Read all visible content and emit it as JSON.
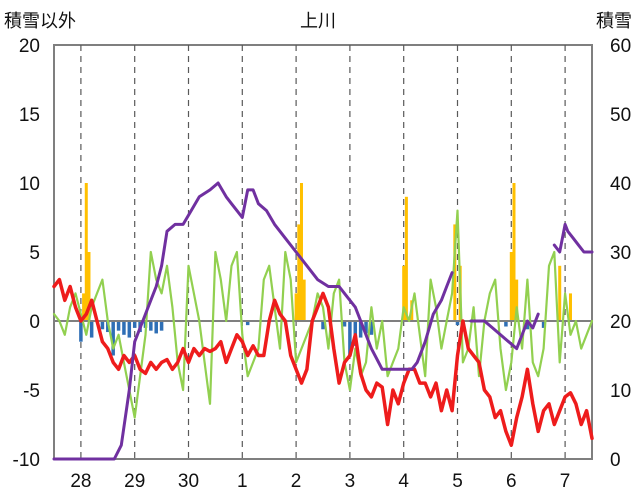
{
  "chart_data": {
    "type": "line",
    "title": "上川",
    "ylabel_left": "積雪以外",
    "ylabel_right": "積雪",
    "y_left_range": [
      -10,
      20
    ],
    "y_right_range": [
      0,
      60
    ],
    "y_left_ticks": [
      "20",
      "15",
      "10",
      "5",
      "0",
      "-5",
      "-10"
    ],
    "y_right_ticks": [
      "60",
      "50",
      "40",
      "30",
      "20",
      "10",
      "0"
    ],
    "x_ticks": [
      "28",
      "29",
      "30",
      "1",
      "2",
      "3",
      "4",
      "5",
      "6",
      "7"
    ],
    "x_range": [
      27.5,
      37.5
    ],
    "grid": "vertical dashed at each day",
    "colors": {
      "temperature": "#ee1c1c",
      "wind": "#92d050",
      "snow_depth": "#7030a0",
      "precip": "#ffc000",
      "snow_change": "#2f6fb5",
      "axis": "#7f7f7f"
    },
    "series": [
      {
        "key": "temperature",
        "axis": "left",
        "x": [
          27.5,
          27.6,
          27.7,
          27.8,
          27.9,
          28.0,
          28.1,
          28.2,
          28.3,
          28.4,
          28.5,
          28.6,
          28.7,
          28.8,
          28.9,
          29.0,
          29.1,
          29.2,
          29.3,
          29.4,
          29.5,
          29.6,
          29.7,
          29.8,
          29.9,
          30.0,
          30.1,
          30.2,
          30.3,
          30.4,
          30.5,
          30.6,
          30.7,
          30.8,
          30.9,
          31.0,
          31.1,
          31.2,
          31.3,
          31.4,
          31.5,
          31.6,
          31.7,
          31.8,
          31.9,
          32.0,
          32.1,
          32.2,
          32.3,
          32.4,
          32.5,
          32.6,
          32.7,
          32.8,
          32.9,
          33.0,
          33.1,
          33.2,
          33.3,
          33.4,
          33.5,
          33.6,
          33.7,
          33.8,
          33.9,
          34.0,
          34.1,
          34.2,
          34.3,
          34.4,
          34.5,
          34.6,
          34.7,
          34.8,
          34.9,
          35.0,
          35.1,
          35.2,
          35.3,
          35.4,
          35.5,
          35.6,
          35.7,
          35.8,
          35.9,
          36.0,
          36.1,
          36.2,
          36.3,
          36.4,
          36.5,
          36.6,
          36.7,
          36.8,
          36.9,
          37.0,
          37.1,
          37.2,
          37.3,
          37.4,
          37.5
        ],
        "values": [
          2.5,
          3,
          1.5,
          2.5,
          1,
          0,
          0.5,
          1.5,
          0,
          -1.5,
          -2,
          -3,
          -3.5,
          -2.5,
          -3,
          -2.5,
          -3.5,
          -3.8,
          -3,
          -3.5,
          -3,
          -2.8,
          -3.5,
          -3,
          -2,
          -3,
          -2,
          -2.5,
          -2,
          -2.2,
          -2,
          -1.5,
          -3,
          -2,
          -1,
          -1.5,
          -2.5,
          -1.8,
          -2.5,
          -2.5,
          0,
          1.5,
          0.5,
          0,
          -2.5,
          -3.5,
          -4.5,
          -3.5,
          0,
          1,
          2,
          1,
          -2,
          -4.5,
          -3,
          -2.5,
          -1,
          -3.8,
          -5,
          -5.5,
          -4.5,
          -4.8,
          -7.5,
          -5,
          -6,
          -4.5,
          -3.5,
          -3.5,
          -4.5,
          -4.5,
          -5.5,
          -4.5,
          -6.5,
          -5,
          -6.5,
          -2.5,
          0,
          -2,
          -2.5,
          -3,
          -5,
          -5.5,
          -7,
          -6.5,
          -8,
          -9,
          -7,
          -5.5,
          -3.5,
          -6,
          -8,
          -6.5,
          -6,
          -7.5,
          -6.5,
          -5.5,
          -5.2,
          -6,
          -7.5,
          -6.5,
          -8.5
        ]
      },
      {
        "key": "wind",
        "axis": "left",
        "x": [
          27.5,
          27.6,
          27.7,
          27.8,
          27.9,
          28.0,
          28.1,
          28.2,
          28.3,
          28.4,
          28.5,
          28.6,
          28.7,
          28.8,
          28.9,
          29.0,
          29.1,
          29.2,
          29.3,
          29.4,
          29.5,
          29.6,
          29.7,
          29.8,
          29.9,
          30.0,
          30.1,
          30.2,
          30.3,
          30.4,
          30.5,
          30.6,
          30.7,
          30.8,
          30.9,
          31.0,
          31.1,
          31.2,
          31.3,
          31.4,
          31.5,
          31.6,
          31.7,
          31.8,
          31.9,
          32.0,
          32.1,
          32.2,
          32.3,
          32.4,
          32.5,
          32.6,
          32.7,
          32.8,
          32.9,
          33.0,
          33.1,
          33.2,
          33.3,
          33.4,
          33.5,
          33.6,
          33.7,
          33.8,
          33.9,
          34.0,
          34.1,
          34.2,
          34.3,
          34.4,
          34.5,
          34.6,
          34.7,
          34.8,
          34.9,
          35.0,
          35.1,
          35.2,
          35.3,
          35.4,
          35.5,
          35.6,
          35.7,
          35.8,
          35.9,
          36.0,
          36.1,
          36.2,
          36.3,
          36.4,
          36.5,
          36.6,
          36.7,
          36.8,
          36.9,
          37.0,
          37.1,
          37.2,
          37.3,
          37.4,
          37.5
        ],
        "values": [
          0.5,
          0,
          -1,
          1,
          2,
          0.5,
          -1,
          1,
          2,
          3,
          0,
          -2,
          -1,
          -3,
          -5,
          -7,
          -4,
          -1,
          5,
          3,
          2,
          4,
          1,
          -3,
          -5,
          4,
          2,
          0,
          -3,
          -6,
          5,
          3,
          0,
          4,
          5,
          -1,
          -4,
          -3,
          -2,
          3,
          4,
          1,
          -2,
          5,
          3,
          -3,
          -2,
          -1,
          0,
          2,
          1,
          -2,
          2,
          3,
          -3,
          -5,
          -2,
          -4,
          -3,
          1,
          -2,
          0,
          -4,
          -3,
          -2,
          1,
          0,
          2,
          -1,
          -4,
          3,
          1,
          -2,
          0,
          2,
          8,
          -3,
          -2,
          1,
          -4,
          0,
          2,
          3,
          -2,
          -5,
          -3,
          1,
          -2,
          3,
          -3,
          -4,
          -2,
          4,
          5,
          -3,
          2,
          -1,
          0,
          -2,
          -1,
          0
        ]
      },
      {
        "key": "snow_depth",
        "axis": "right",
        "x": [
          27.5,
          28.0,
          28.5,
          28.62,
          28.75,
          28.9,
          29.0,
          29.15,
          29.3,
          29.4,
          29.5,
          29.6,
          29.75,
          29.9,
          30.05,
          30.2,
          30.4,
          30.55,
          30.7,
          30.8,
          30.9,
          31.0,
          31.1,
          31.2,
          31.3,
          31.45,
          31.6,
          31.8,
          32.0,
          32.2,
          32.4,
          32.6,
          32.8,
          32.9,
          33.0,
          33.1,
          33.2,
          33.3,
          33.4,
          33.6,
          33.8,
          34.0,
          34.15,
          34.25,
          34.4,
          34.55,
          34.7,
          34.8,
          34.9,
          35.05,
          35.15,
          35.25,
          35.35,
          35.5,
          35.65,
          35.8,
          35.95,
          36.1,
          36.2,
          36.3,
          36.4,
          36.5,
          36.6,
          36.7,
          36.8,
          36.9,
          37.0,
          37.05,
          37.15,
          37.25,
          37.35,
          37.5
        ],
        "values": [
          0,
          0,
          0,
          0,
          2,
          10,
          17,
          20,
          23,
          25,
          28,
          33,
          34,
          34,
          36,
          38,
          39,
          40,
          38,
          37,
          36,
          35,
          39,
          39,
          37,
          36,
          34,
          32,
          30,
          28,
          26,
          25,
          25,
          24,
          23,
          22,
          20,
          18,
          16,
          13,
          13,
          13,
          13,
          14,
          17,
          21,
          23,
          25,
          27,
          null,
          null,
          20,
          20,
          20,
          19,
          18,
          17,
          16,
          18,
          20,
          19,
          21,
          null,
          null,
          31,
          30,
          34,
          33,
          32,
          31,
          30,
          30
        ]
      },
      {
        "key": "precip",
        "axis": "left",
        "type": "bar",
        "x": [
          28.05,
          28.1,
          28.15,
          32.0,
          32.05,
          32.1,
          32.15,
          34.0,
          34.05,
          34.15,
          34.95,
          35.05,
          36.0,
          36.05,
          36.1,
          36.9,
          37.1
        ],
        "values": [
          2,
          10,
          5,
          2,
          7,
          10,
          3,
          4,
          9,
          1.5,
          7,
          4,
          5,
          10,
          3,
          4,
          2
        ]
      },
      {
        "key": "snow_change",
        "axis": "left",
        "type": "bar",
        "x": [
          28.0,
          28.2,
          28.4,
          28.5,
          28.6,
          28.7,
          28.8,
          28.9,
          29.0,
          29.1,
          29.2,
          29.3,
          29.4,
          29.5,
          31.1,
          32.5,
          32.9,
          33.0,
          33.1,
          33.2,
          33.3,
          33.4,
          35.0,
          35.9,
          36.3,
          36.6
        ],
        "values": [
          -1.5,
          -1.2,
          -0.6,
          -0.8,
          -2.5,
          -0.7,
          -1,
          -1.2,
          -0.5,
          -0.8,
          -0.5,
          -0.7,
          -0.9,
          -0.7,
          -0.3,
          -0.6,
          -0.4,
          -2.5,
          -1.8,
          -1.2,
          -0.9,
          -1,
          -0.3,
          -0.4,
          -0.6,
          -0.5
        ]
      }
    ]
  }
}
